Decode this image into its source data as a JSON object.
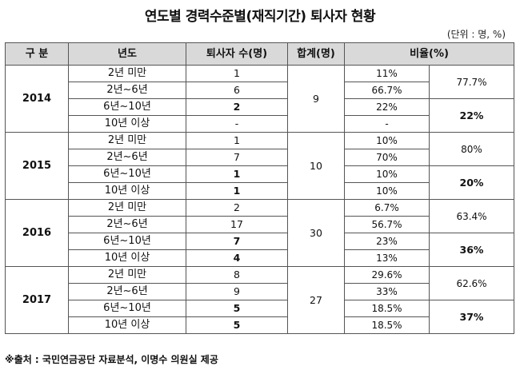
{
  "title": "연도별 경력수준별(재직기간) 퇴사자 현황",
  "unit": "(단위 : 명, %)",
  "headers": {
    "group": "구 분",
    "tenure": "년도",
    "count": "퇴사자 수(명)",
    "total": "합계(명)",
    "ratio": "비율(%)"
  },
  "years": [
    {
      "year": "2014",
      "total": "9",
      "rows": [
        {
          "tenure": "2년 미만",
          "count": "1",
          "ratio": "11%"
        },
        {
          "tenure": "2년~6년",
          "count": "6",
          "ratio": "66.7%"
        },
        {
          "tenure": "6년~10년",
          "count": "2",
          "ratio": "22%"
        },
        {
          "tenure": "10년 이상",
          "count": "-",
          "ratio": "-"
        }
      ],
      "group_ratio_low": "77.7%",
      "group_ratio_high": "22%"
    },
    {
      "year": "2015",
      "total": "10",
      "rows": [
        {
          "tenure": "2년 미만",
          "count": "1",
          "ratio": "10%"
        },
        {
          "tenure": "2년~6년",
          "count": "7",
          "ratio": "70%"
        },
        {
          "tenure": "6년~10년",
          "count": "1",
          "ratio": "10%"
        },
        {
          "tenure": "10년 이상",
          "count": "1",
          "ratio": "10%"
        }
      ],
      "group_ratio_low": "80%",
      "group_ratio_high": "20%"
    },
    {
      "year": "2016",
      "total": "30",
      "rows": [
        {
          "tenure": "2년 미만",
          "count": "2",
          "ratio": "6.7%"
        },
        {
          "tenure": "2년~6년",
          "count": "17",
          "ratio": "56.7%"
        },
        {
          "tenure": "6년~10년",
          "count": "7",
          "ratio": "23%"
        },
        {
          "tenure": "10년 이상",
          "count": "4",
          "ratio": "13%"
        }
      ],
      "group_ratio_low": "63.4%",
      "group_ratio_high": "36%"
    },
    {
      "year": "2017",
      "total": "27",
      "rows": [
        {
          "tenure": "2년 미만",
          "count": "8",
          "ratio": "29.6%"
        },
        {
          "tenure": "2년~6년",
          "count": "9",
          "ratio": "33%"
        },
        {
          "tenure": "6년~10년",
          "count": "5",
          "ratio": "18.5%"
        },
        {
          "tenure": "10년 이상",
          "count": "5",
          "ratio": "18.5%"
        }
      ],
      "group_ratio_low": "62.6%",
      "group_ratio_high": "37%"
    }
  ],
  "footer": "※출처 : 국민연금공단 자료분석, 이명수 의원실 제공"
}
